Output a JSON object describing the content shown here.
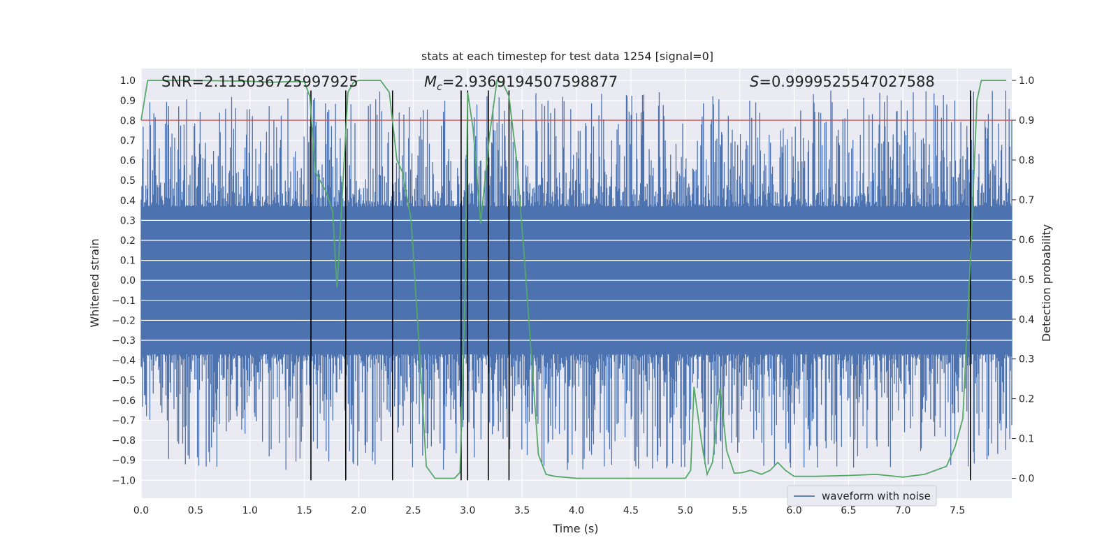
{
  "chart_data": {
    "type": "line",
    "title": "stats at each timestep for test data 1254 [signal=0]",
    "xlabel": "Time (s)",
    "ylabel_left": "Whitened strain",
    "ylabel_right": "Detection probability",
    "xlim": [
      0.0,
      8.0
    ],
    "ylim_left": [
      -1.09,
      1.06
    ],
    "ylim_right": [
      -0.05,
      1.03
    ],
    "x_ticks": [
      0.0,
      0.5,
      1.0,
      1.5,
      2.0,
      2.5,
      3.0,
      3.5,
      4.0,
      4.5,
      5.0,
      5.5,
      6.0,
      6.5,
      7.0,
      7.5
    ],
    "x_tick_labels": [
      "0.0",
      "0.5",
      "1.0",
      "1.5",
      "2.0",
      "2.5",
      "3.0",
      "3.5",
      "4.0",
      "4.5",
      "5.0",
      "5.5",
      "6.0",
      "6.5",
      "7.0",
      "7.5"
    ],
    "y_left_ticks": [
      1.0,
      0.9,
      0.8,
      0.7,
      0.6,
      0.5,
      0.4,
      0.3,
      0.2,
      0.1,
      0.0,
      -0.1,
      -0.2,
      -0.3,
      -0.4,
      -0.5,
      -0.6,
      -0.7,
      -0.8,
      -0.9,
      -1.0
    ],
    "y_left_tick_labels": [
      "1.0",
      "0.9",
      "0.8",
      "0.7",
      "0.6",
      "0.5",
      "0.4",
      "0.3",
      "0.2",
      "0.1",
      "0.0",
      "−0.1",
      "−0.2",
      "−0.3",
      "−0.4",
      "−0.5",
      "−0.6",
      "−0.7",
      "−0.8",
      "−0.9",
      "−1.0"
    ],
    "y_right_ticks": [
      1.0,
      0.9,
      0.8,
      0.7,
      0.6,
      0.5,
      0.4,
      0.3,
      0.2,
      0.1,
      0.0
    ],
    "y_right_tick_labels": [
      "1.0",
      "0.9",
      "0.8",
      "0.7",
      "0.6",
      "0.5",
      "0.4",
      "0.3",
      "0.2",
      "0.1",
      "0.0"
    ],
    "annotations": {
      "snr": "SNR=2.115036725997925",
      "mc_symbol": "M",
      "mc_sub": "c",
      "mc_value": "=2.9369194507598877",
      "s_symbol": "S",
      "s_value": "=0.9999525547027588"
    },
    "threshold": 0.9,
    "vlines": [
      1.56,
      1.88,
      2.31,
      2.94,
      3.0,
      3.19,
      3.38,
      7.62
    ],
    "vline_ylim": [
      -1.0,
      0.95
    ],
    "strain_series": {
      "name": "waveform with noise",
      "description_values": "dense noise, roughly uniform amplitude",
      "seed": 1254,
      "n_samples": 1300,
      "core_amplitude": 0.37,
      "max_amplitude": 0.95,
      "min_value": -1.0
    },
    "probability_series": {
      "name": "Detection probability",
      "x": [
        0.0,
        0.06,
        0.13,
        0.5,
        1.0,
        1.2,
        1.35,
        1.5,
        1.55,
        1.6,
        1.7,
        1.76,
        1.8,
        1.85,
        1.9,
        1.95,
        2.0,
        2.1,
        2.2,
        2.28,
        2.35,
        2.4,
        2.48,
        2.55,
        2.62,
        2.7,
        2.88,
        2.93,
        2.98,
        3.0,
        3.05,
        3.12,
        3.2,
        3.27,
        3.32,
        3.38,
        3.45,
        3.52,
        3.58,
        3.65,
        3.72,
        3.8,
        4.0,
        4.3,
        4.5,
        5.0,
        5.05,
        5.08,
        5.15,
        5.2,
        5.25,
        5.32,
        5.38,
        5.45,
        5.52,
        5.6,
        5.7,
        5.78,
        5.85,
        5.92,
        6.0,
        6.2,
        6.5,
        6.75,
        7.0,
        7.2,
        7.4,
        7.48,
        7.55,
        7.62,
        7.68,
        7.72,
        7.8,
        7.86,
        7.95
      ],
      "y": [
        0.9,
        1.0,
        1.0,
        1.0,
        0.998,
        0.995,
        0.997,
        0.997,
        0.96,
        0.77,
        0.72,
        0.67,
        0.48,
        0.72,
        0.97,
        0.995,
        1.0,
        1.0,
        1.0,
        0.97,
        0.8,
        0.77,
        0.65,
        0.35,
        0.03,
        0.0,
        0.0,
        0.015,
        0.5,
        0.97,
        0.88,
        0.64,
        0.86,
        1.0,
        0.995,
        0.96,
        0.8,
        0.56,
        0.33,
        0.06,
        0.01,
        0.005,
        0.0,
        0.0,
        0.0,
        0.0,
        0.02,
        0.23,
        0.09,
        0.01,
        0.04,
        0.23,
        0.07,
        0.013,
        0.014,
        0.02,
        0.01,
        0.02,
        0.04,
        0.02,
        0.005,
        0.005,
        0.007,
        0.01,
        0.003,
        0.01,
        0.03,
        0.08,
        0.15,
        0.55,
        0.95,
        1.0,
        1.0,
        1.0,
        1.0
      ]
    },
    "legend": {
      "label": "waveform with noise",
      "location": "lower-center-right"
    },
    "colors": {
      "background": "#eaeaf2",
      "grid": "#ffffff",
      "strain": "#4c72b0",
      "probability": "#55a868",
      "threshold": "#c44e52",
      "vlines": "#000000"
    }
  }
}
